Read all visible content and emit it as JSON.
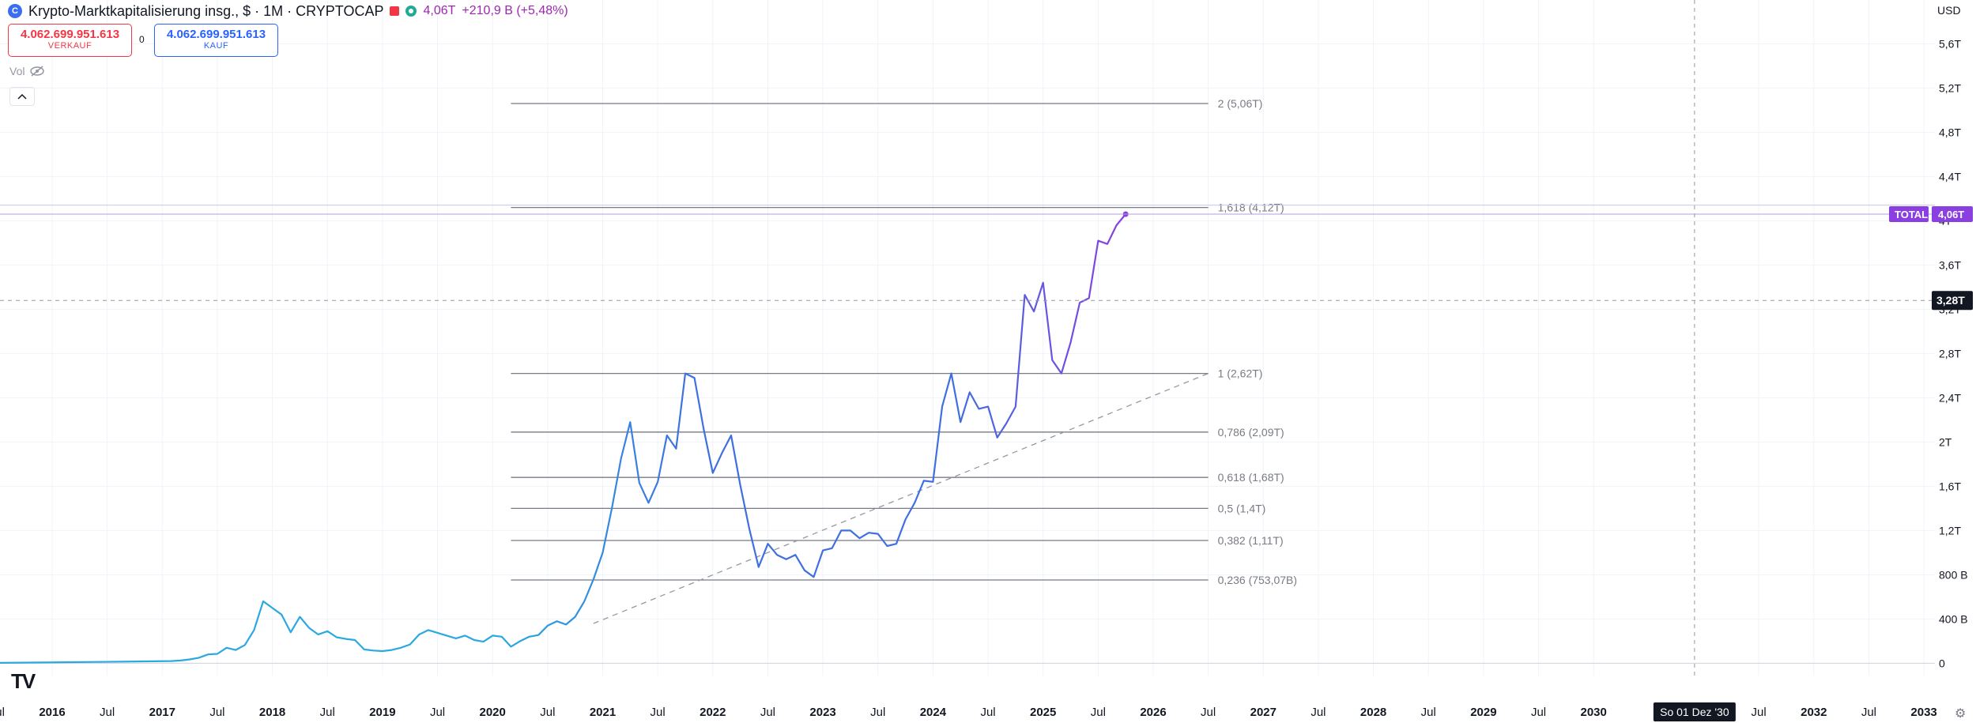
{
  "header": {
    "logo_glyph": "C",
    "title": "Krypto-Marktkapitalisierung insg., $ · 1M · CRYPTOCAP",
    "last_value": "4,06T",
    "change": "+210,9 B (+5,48%)"
  },
  "sell": {
    "value": "4.062.699.951.613",
    "label": "VERKAUF"
  },
  "buy": {
    "value": "4.062.699.951.613",
    "label": "KAUF"
  },
  "spread": "0",
  "volume_label": "Vol",
  "currency": "USD",
  "colors": {
    "line_early": "#2aa9e0",
    "line_mid": "#3f6fe0",
    "line_late": "#8a3fe0",
    "fib": "#787b86",
    "accent": "#9c27b0"
  },
  "chart_data": {
    "type": "line",
    "series": [
      {
        "name": "TOTAL",
        "x": [
          "2015-06",
          "2015-12",
          "2016-06",
          "2016-12",
          "2017-02",
          "2017-03",
          "2017-04",
          "2017-05",
          "2017-06",
          "2017-07",
          "2017-08",
          "2017-09",
          "2017-10",
          "2017-11",
          "2017-12",
          "2018-01",
          "2018-02",
          "2018-03",
          "2018-04",
          "2018-05",
          "2018-06",
          "2018-07",
          "2018-08",
          "2018-09",
          "2018-10",
          "2018-11",
          "2018-12",
          "2019-01",
          "2019-02",
          "2019-03",
          "2019-04",
          "2019-05",
          "2019-06",
          "2019-07",
          "2019-08",
          "2019-09",
          "2019-10",
          "2019-11",
          "2019-12",
          "2020-01",
          "2020-02",
          "2020-03",
          "2020-04",
          "2020-05",
          "2020-06",
          "2020-07",
          "2020-08",
          "2020-09",
          "2020-10",
          "2020-11",
          "2020-12",
          "2021-01",
          "2021-02",
          "2021-03",
          "2021-04",
          "2021-05",
          "2021-06",
          "2021-07",
          "2021-08",
          "2021-09",
          "2021-10",
          "2021-11",
          "2021-12",
          "2022-01",
          "2022-02",
          "2022-03",
          "2022-04",
          "2022-05",
          "2022-06",
          "2022-07",
          "2022-08",
          "2022-09",
          "2022-10",
          "2022-11",
          "2022-12",
          "2023-01",
          "2023-02",
          "2023-03",
          "2023-04",
          "2023-05",
          "2023-06",
          "2023-07",
          "2023-08",
          "2023-09",
          "2023-10",
          "2023-11",
          "2023-12",
          "2024-01",
          "2024-02",
          "2024-03",
          "2024-04",
          "2024-05",
          "2024-06",
          "2024-07",
          "2024-08",
          "2024-09",
          "2024-10",
          "2024-11",
          "2024-12",
          "2025-01",
          "2025-02",
          "2025-03",
          "2025-04",
          "2025-05",
          "2025-06",
          "2025-07",
          "2025-08",
          "2025-09"
        ],
        "values": [
          3,
          7,
          12,
          18,
          20,
          25,
          35,
          50,
          80,
          85,
          140,
          120,
          165,
          300,
          560,
          500,
          440,
          280,
          420,
          320,
          260,
          290,
          235,
          220,
          210,
          125,
          115,
          110,
          120,
          140,
          170,
          260,
          300,
          275,
          250,
          225,
          250,
          210,
          195,
          250,
          240,
          150,
          200,
          240,
          255,
          340,
          380,
          350,
          420,
          560,
          760,
          1000,
          1400,
          1850,
          2180,
          1630,
          1450,
          1640,
          2060,
          1940,
          2620,
          2580,
          2120,
          1720,
          1900,
          2060,
          1610,
          1210,
          870,
          1080,
          980,
          940,
          980,
          840,
          780,
          1020,
          1040,
          1200,
          1200,
          1130,
          1180,
          1170,
          1060,
          1080,
          1300,
          1450,
          1650,
          1640,
          2320,
          2620,
          2180,
          2450,
          2300,
          2320,
          2040,
          2170,
          2320,
          3330,
          3180,
          3440,
          2740,
          2620,
          2900,
          3260,
          3300,
          3820,
          3790,
          3960
        ]
      }
    ],
    "last_point": {
      "date": "2025-10",
      "value": 4060
    },
    "units": "Mrd. USD",
    "ylim": [
      -40,
      5760
    ],
    "y_ticks": [
      "0",
      "400 B",
      "800 B",
      "1,2T",
      "1,6T",
      "2T",
      "2,4T",
      "2,8T",
      "3,2T",
      "3,6T",
      "4T",
      "4,4T",
      "4,8T",
      "5,2T",
      "5,6T"
    ],
    "y_tick_values": [
      0,
      400,
      800,
      1200,
      1600,
      2000,
      2400,
      2800,
      3200,
      3600,
      4000,
      4400,
      4800,
      5200,
      5600
    ],
    "x_ticks": [
      "Jul",
      "2016",
      "Jul",
      "2017",
      "Jul",
      "2018",
      "Jul",
      "2019",
      "Jul",
      "2020",
      "Jul",
      "2021",
      "Jul",
      "2022",
      "Jul",
      "2023",
      "Jul",
      "2024",
      "Jul",
      "2025",
      "Jul",
      "2026",
      "Jul",
      "2027",
      "Jul",
      "2028",
      "Jul",
      "2029",
      "Jul",
      "2030",
      "Jul",
      "2032",
      "Jul",
      "2033"
    ],
    "x_tick_dates": [
      "2015-07",
      "2016-01",
      "2016-07",
      "2017-01",
      "2017-07",
      "2018-01",
      "2018-07",
      "2019-01",
      "2019-07",
      "2020-01",
      "2020-07",
      "2021-01",
      "2021-07",
      "2022-01",
      "2022-07",
      "2023-01",
      "2023-07",
      "2024-01",
      "2024-07",
      "2025-01",
      "2025-07",
      "2026-01",
      "2026-07",
      "2027-01",
      "2027-07",
      "2028-01",
      "2028-07",
      "2029-01",
      "2029-07",
      "2030-01",
      "2031-07",
      "2032-01",
      "2032-07",
      "2033-01"
    ],
    "fib_levels": [
      {
        "label": "2 (5,06T)",
        "value": 5060
      },
      {
        "label": "1,618 (4,12T)",
        "value": 4120
      },
      {
        "label": "1 (2,62T)",
        "value": 2620
      },
      {
        "label": "0,786 (2,09T)",
        "value": 2090
      },
      {
        "label": "0,618 (1,68T)",
        "value": 1680
      },
      {
        "label": "0,5 (1,4T)",
        "value": 1400
      },
      {
        "label": "0,382 (1,11T)",
        "value": 1110
      },
      {
        "label": "0,236 (753,07B)",
        "value": 753.07
      }
    ],
    "fib_range": {
      "start": "2020-03",
      "end": "2026-07"
    },
    "trendline": {
      "from": {
        "date": "2020-12",
        "value": 360
      },
      "to": {
        "date": "2026-07",
        "value": 2620
      }
    },
    "crosshair": {
      "date": "2030-12",
      "value": 3280,
      "date_label": "So 01 Dez '30",
      "value_label": "3,28T"
    },
    "last_label": {
      "name": "TOTAL",
      "value": "4,06T"
    }
  }
}
